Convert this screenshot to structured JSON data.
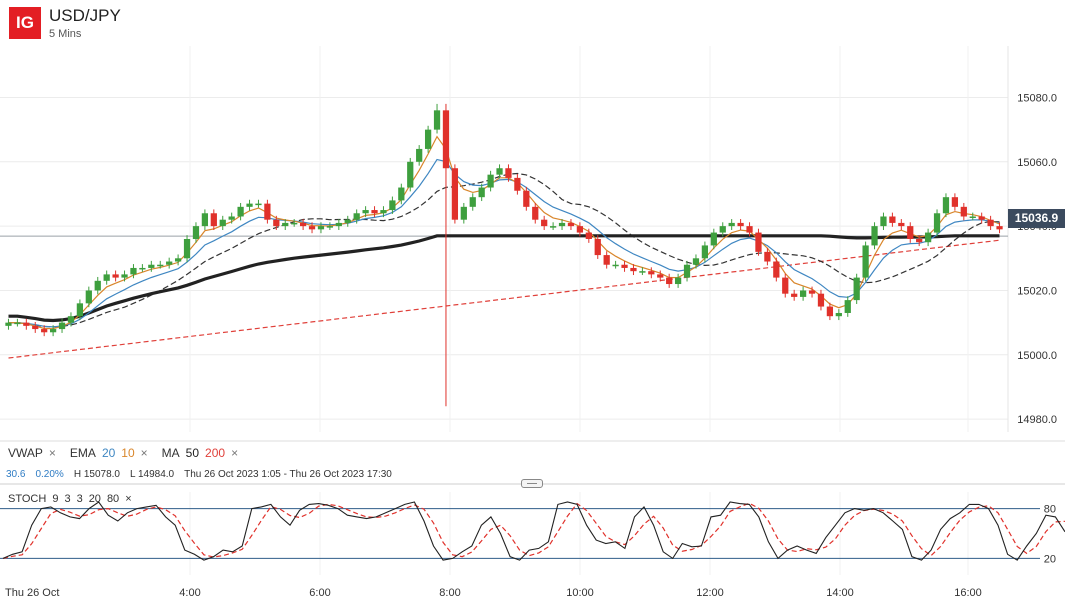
{
  "header": {
    "logo_text": "IG",
    "symbol": "USD/JPY",
    "interval": "5 Mins"
  },
  "indicators": {
    "vwap_label": "VWAP",
    "ema_label": "EMA",
    "ema_fast": "20",
    "ema_slow": "10",
    "ma_label": "MA",
    "ma_fast": "50",
    "ma_slow": "200",
    "close_icon": "×"
  },
  "stats": {
    "change": "30.6",
    "change_pct": "0.20%",
    "high": "H 15078.0",
    "low": "L 14984.0",
    "range": "Thu 26 Oct 2023 1:05 - Thu 26 Oct 2023 17:30"
  },
  "stoch": {
    "label": "STOCH",
    "params": [
      "9",
      "3",
      "3",
      "20",
      "80"
    ],
    "level_high": "80",
    "level_low": "20"
  },
  "current_price": "15036.9",
  "colors": {
    "up": "#3e9f3e",
    "down": "#e0312b",
    "ema20": "#3f87c2",
    "ema10": "#d9862b",
    "ma50": "#333333",
    "ma200": "#e0403a",
    "vwap": "#222222",
    "price_tag": "#3b4a5e",
    "logo": "#e31e24"
  },
  "chart_data": {
    "type": "candlestick",
    "title": "USD/JPY",
    "y_ticks": [
      "15080.0",
      "15060.0",
      "15040.0",
      "15020.0",
      "15000.0",
      "14980.0"
    ],
    "ylim": [
      14976,
      15096
    ],
    "x_ticks": [
      "Thu 26 Oct",
      "4:00",
      "6:00",
      "8:00",
      "10:00",
      "12:00",
      "14:00",
      "16:00"
    ],
    "x_range": [
      "01:05",
      "17:30"
    ],
    "high": 15078.0,
    "low": 14984.0,
    "last": 15036.9,
    "close_series": [
      15010,
      15010,
      15009,
      15008,
      15007,
      15008,
      15010,
      15012,
      15016,
      15020,
      15023,
      15025,
      15024,
      15025,
      15027,
      15027,
      15028,
      15028,
      15029,
      15030,
      15036,
      15040,
      15044,
      15040,
      15042,
      15043,
      15046,
      15047,
      15047,
      15042,
      15040,
      15041,
      15041,
      15040,
      15039,
      15040,
      15040,
      15041,
      15042,
      15044,
      15045,
      15044,
      15045,
      15048,
      15052,
      15060,
      15064,
      15070,
      15076,
      15058,
      15042,
      15046,
      15049,
      15052,
      15056,
      15058,
      15055,
      15051,
      15046,
      15042,
      15040,
      15040,
      15041,
      15040,
      15038,
      15036,
      15031,
      15028,
      15028,
      15027,
      15026,
      15026,
      15025,
      15024,
      15022,
      15024,
      15028,
      15030,
      15034,
      15038,
      15040,
      15041,
      15040,
      15038,
      15032,
      15029,
      15024,
      15019,
      15018,
      15020,
      15019,
      15015,
      15012,
      15013,
      15017,
      15024,
      15034,
      15040,
      15043,
      15041,
      15040,
      15036,
      15035,
      15038,
      15044,
      15049,
      15046,
      15043,
      15043,
      15042,
      15040,
      15039
    ],
    "series": [
      {
        "name": "VWAP",
        "type": "line"
      },
      {
        "name": "EMA 20",
        "type": "line"
      },
      {
        "name": "EMA 10",
        "type": "line"
      },
      {
        "name": "MA 50",
        "type": "line"
      },
      {
        "name": "MA 200",
        "type": "line"
      }
    ],
    "stochastic": {
      "levels": [
        20,
        80
      ],
      "k": [
        20,
        25,
        28,
        60,
        80,
        82,
        75,
        70,
        68,
        80,
        88,
        72,
        65,
        75,
        80,
        82,
        84,
        70,
        60,
        30,
        25,
        18,
        22,
        30,
        28,
        35,
        80,
        82,
        85,
        70,
        60,
        78,
        85,
        86,
        84,
        80,
        72,
        70,
        68,
        70,
        75,
        80,
        85,
        88,
        65,
        35,
        18,
        20,
        28,
        35,
        60,
        70,
        50,
        22,
        18,
        30,
        32,
        40,
        85,
        88,
        85,
        60,
        42,
        38,
        40,
        32,
        70,
        82,
        60,
        28,
        20,
        38,
        34,
        35,
        70,
        72,
        88,
        86,
        85,
        70,
        40,
        20,
        30,
        35,
        30,
        26,
        45,
        60,
        75,
        80,
        78,
        80,
        75,
        65,
        55,
        22,
        18,
        30,
        55,
        68,
        75,
        85,
        85,
        80,
        60,
        25,
        18,
        35,
        50,
        72,
        70,
        52
      ]
    }
  }
}
